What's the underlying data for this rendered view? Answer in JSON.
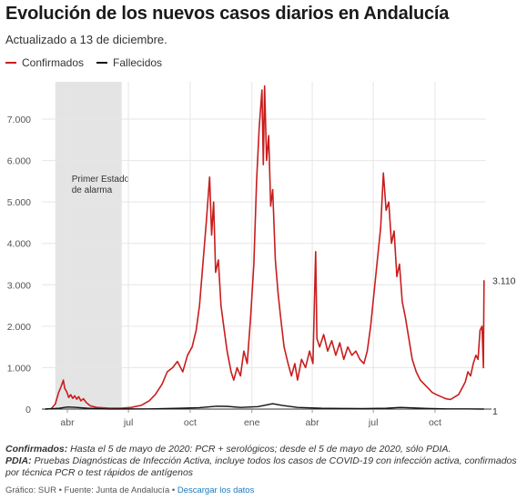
{
  "title": "Evolución de los nuevos casos diarios en Andalucía",
  "subtitle": "Actualizado a 13 de diciembre.",
  "notes": {
    "confirmados_label": "Confirmados:",
    "confirmados_text": " Hasta el 5 de mayo de 2020: PCR + serológicos; desde el 5 de mayo de 2020, sólo PDIA.",
    "pdia_label": "PDIA:",
    "pdia_text": " Pruebas Diagnósticas de Infección Activa, incluye todos los casos de COVID-19 con infección activa, confirmados por técnica PCR o test rápidos de antígenos"
  },
  "footer": {
    "text": "Gráfico: SUR • Fuente: Junta de Andalucía • ",
    "link": "Descargar los datos"
  },
  "colors": {
    "confirmados": "#c91d1d",
    "fallecidos": "#111111",
    "band": "#e4e4e4",
    "grid": "#e6e6e6"
  },
  "chart_data": {
    "type": "line",
    "x_axis": "date",
    "x_ticks": [
      "abr",
      "jul",
      "oct",
      "ene",
      "abr",
      "jul",
      "oct"
    ],
    "y_ticks": [
      "0",
      "1.000",
      "2.000",
      "3.000",
      "4.000",
      "5.000",
      "6.000",
      "7.000"
    ],
    "ylim": [
      0,
      7900
    ],
    "grid": true,
    "legend_position": "top-left",
    "annotation": {
      "label_line1": "Primer Estado",
      "label_line2": "de alarma",
      "start": "2020-03-14",
      "end": "2020-06-21"
    },
    "end_labels": {
      "confirmados": "3.110",
      "fallecidos": "1"
    },
    "series": [
      {
        "name": "Confirmados",
        "points": [
          [
            "2020-02-28",
            0
          ],
          [
            "2020-03-08",
            10
          ],
          [
            "2020-03-14",
            120
          ],
          [
            "2020-03-19",
            400
          ],
          [
            "2020-03-23",
            560
          ],
          [
            "2020-03-26",
            700
          ],
          [
            "2020-03-28",
            500
          ],
          [
            "2020-03-31",
            420
          ],
          [
            "2020-04-03",
            280
          ],
          [
            "2020-04-06",
            350
          ],
          [
            "2020-04-09",
            260
          ],
          [
            "2020-04-12",
            320
          ],
          [
            "2020-04-15",
            240
          ],
          [
            "2020-04-18",
            300
          ],
          [
            "2020-04-21",
            200
          ],
          [
            "2020-04-25",
            250
          ],
          [
            "2020-04-29",
            160
          ],
          [
            "2020-05-05",
            80
          ],
          [
            "2020-05-15",
            40
          ],
          [
            "2020-06-01",
            25
          ],
          [
            "2020-06-20",
            20
          ],
          [
            "2020-07-05",
            40
          ],
          [
            "2020-07-20",
            90
          ],
          [
            "2020-08-01",
            200
          ],
          [
            "2020-08-10",
            350
          ],
          [
            "2020-08-20",
            600
          ],
          [
            "2020-08-28",
            900
          ],
          [
            "2020-09-05",
            1000
          ],
          [
            "2020-09-12",
            1150
          ],
          [
            "2020-09-20",
            900
          ],
          [
            "2020-09-27",
            1300
          ],
          [
            "2020-10-04",
            1500
          ],
          [
            "2020-10-10",
            1900
          ],
          [
            "2020-10-15",
            2500
          ],
          [
            "2020-10-20",
            3500
          ],
          [
            "2020-10-25",
            4500
          ],
          [
            "2020-10-30",
            5600
          ],
          [
            "2020-11-02",
            4200
          ],
          [
            "2020-11-05",
            5000
          ],
          [
            "2020-11-08",
            3300
          ],
          [
            "2020-11-12",
            3600
          ],
          [
            "2020-11-16",
            2500
          ],
          [
            "2020-11-20",
            2000
          ],
          [
            "2020-11-25",
            1400
          ],
          [
            "2020-12-01",
            900
          ],
          [
            "2020-12-05",
            700
          ],
          [
            "2020-12-10",
            1000
          ],
          [
            "2020-12-15",
            800
          ],
          [
            "2020-12-20",
            1400
          ],
          [
            "2020-12-25",
            1100
          ],
          [
            "2020-12-30",
            2200
          ],
          [
            "2021-01-04",
            3500
          ],
          [
            "2021-01-08",
            5500
          ],
          [
            "2021-01-12",
            6800
          ],
          [
            "2021-01-16",
            7700
          ],
          [
            "2021-01-18",
            5900
          ],
          [
            "2021-01-20",
            7800
          ],
          [
            "2021-01-23",
            6000
          ],
          [
            "2021-01-26",
            6600
          ],
          [
            "2021-01-29",
            4900
          ],
          [
            "2021-02-01",
            5300
          ],
          [
            "2021-02-05",
            3600
          ],
          [
            "2021-02-09",
            2800
          ],
          [
            "2021-02-13",
            2200
          ],
          [
            "2021-02-18",
            1500
          ],
          [
            "2021-02-24",
            1100
          ],
          [
            "2021-03-01",
            800
          ],
          [
            "2021-03-06",
            1100
          ],
          [
            "2021-03-10",
            700
          ],
          [
            "2021-03-16",
            1200
          ],
          [
            "2021-03-22",
            1000
          ],
          [
            "2021-03-28",
            1400
          ],
          [
            "2021-04-02",
            1100
          ],
          [
            "2021-04-06",
            3800
          ],
          [
            "2021-04-08",
            1700
          ],
          [
            "2021-04-12",
            1500
          ],
          [
            "2021-04-18",
            1800
          ],
          [
            "2021-04-24",
            1400
          ],
          [
            "2021-04-30",
            1650
          ],
          [
            "2021-05-06",
            1300
          ],
          [
            "2021-05-12",
            1600
          ],
          [
            "2021-05-18",
            1200
          ],
          [
            "2021-05-24",
            1500
          ],
          [
            "2021-05-30",
            1300
          ],
          [
            "2021-06-05",
            1400
          ],
          [
            "2021-06-11",
            1200
          ],
          [
            "2021-06-17",
            1100
          ],
          [
            "2021-06-22",
            1400
          ],
          [
            "2021-06-27",
            2000
          ],
          [
            "2021-07-02",
            2800
          ],
          [
            "2021-07-07",
            3600
          ],
          [
            "2021-07-12",
            4400
          ],
          [
            "2021-07-16",
            5700
          ],
          [
            "2021-07-20",
            4800
          ],
          [
            "2021-07-24",
            5000
          ],
          [
            "2021-07-28",
            4000
          ],
          [
            "2021-08-01",
            4300
          ],
          [
            "2021-08-05",
            3200
          ],
          [
            "2021-08-09",
            3500
          ],
          [
            "2021-08-13",
            2600
          ],
          [
            "2021-08-18",
            2200
          ],
          [
            "2021-08-23",
            1700
          ],
          [
            "2021-08-28",
            1200
          ],
          [
            "2021-09-03",
            900
          ],
          [
            "2021-09-09",
            700
          ],
          [
            "2021-09-15",
            600
          ],
          [
            "2021-09-21",
            500
          ],
          [
            "2021-09-27",
            400
          ],
          [
            "2021-10-03",
            350
          ],
          [
            "2021-10-10",
            300
          ],
          [
            "2021-10-17",
            250
          ],
          [
            "2021-10-24",
            230
          ],
          [
            "2021-10-31",
            300
          ],
          [
            "2021-11-05",
            350
          ],
          [
            "2021-11-10",
            500
          ],
          [
            "2021-11-15",
            650
          ],
          [
            "2021-11-19",
            900
          ],
          [
            "2021-11-23",
            800
          ],
          [
            "2021-11-27",
            1100
          ],
          [
            "2021-12-01",
            1300
          ],
          [
            "2021-12-04",
            1200
          ],
          [
            "2021-12-07",
            1900
          ],
          [
            "2021-12-10",
            2000
          ],
          [
            "2021-12-12",
            1000
          ],
          [
            "2021-12-13",
            3110
          ]
        ]
      },
      {
        "name": "Fallecidos",
        "points": [
          [
            "2020-02-28",
            0
          ],
          [
            "2020-03-20",
            20
          ],
          [
            "2020-04-01",
            50
          ],
          [
            "2020-04-10",
            45
          ],
          [
            "2020-05-01",
            20
          ],
          [
            "2020-06-01",
            3
          ],
          [
            "2020-08-01",
            5
          ],
          [
            "2020-09-15",
            20
          ],
          [
            "2020-10-15",
            35
          ],
          [
            "2020-11-10",
            70
          ],
          [
            "2020-11-25",
            65
          ],
          [
            "2020-12-15",
            40
          ],
          [
            "2021-01-10",
            60
          ],
          [
            "2021-02-01",
            130
          ],
          [
            "2021-02-15",
            90
          ],
          [
            "2021-03-10",
            40
          ],
          [
            "2021-04-15",
            20
          ],
          [
            "2021-05-15",
            15
          ],
          [
            "2021-06-15",
            10
          ],
          [
            "2021-07-20",
            20
          ],
          [
            "2021-08-10",
            40
          ],
          [
            "2021-08-25",
            30
          ],
          [
            "2021-09-20",
            15
          ],
          [
            "2021-10-20",
            5
          ],
          [
            "2021-11-20",
            5
          ],
          [
            "2021-12-13",
            1
          ]
        ]
      }
    ]
  }
}
